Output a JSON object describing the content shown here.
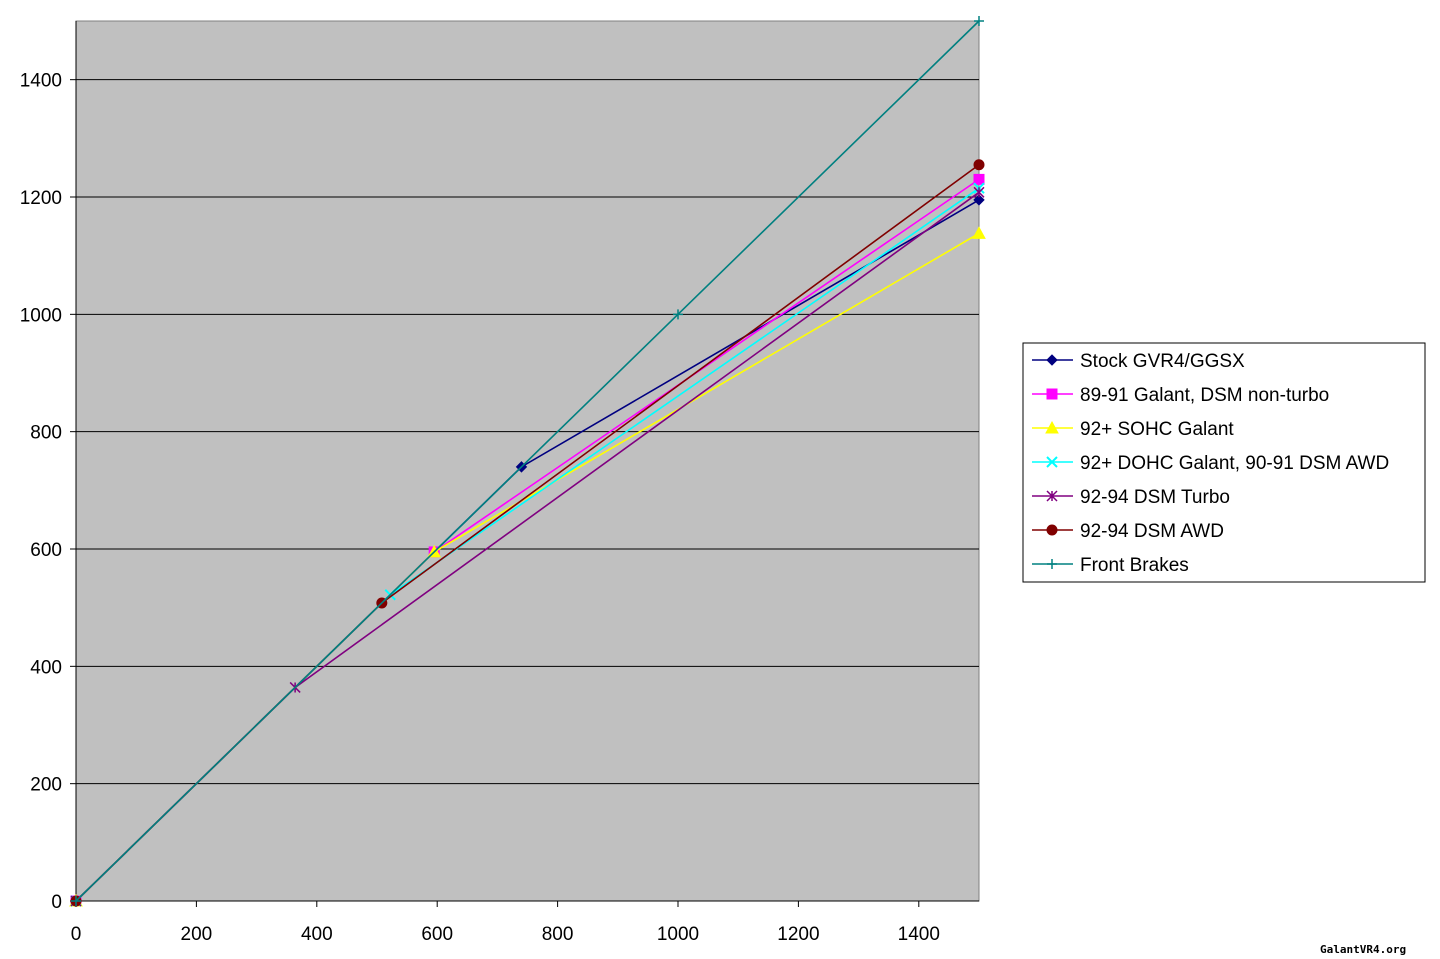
{
  "chart_data": {
    "type": "line",
    "xlim": [
      0,
      1500
    ],
    "ylim": [
      0,
      1500
    ],
    "x_ticks": [
      0,
      200,
      400,
      600,
      800,
      1000,
      1200,
      1400
    ],
    "y_ticks": [
      0,
      200,
      400,
      600,
      800,
      1000,
      1200,
      1400
    ],
    "grid": "horizontal",
    "legend_position": "right",
    "plot_background": "#c0c0c0",
    "series": [
      {
        "name": "Stock GVR4/GGSX",
        "color": "#000080",
        "marker": "diamond",
        "points": [
          [
            0,
            0
          ],
          [
            740,
            740
          ],
          [
            1500,
            1195
          ]
        ]
      },
      {
        "name": "89-91 Galant, DSM non-turbo",
        "color": "#ff00ff",
        "marker": "square",
        "points": [
          [
            0,
            0
          ],
          [
            595,
            595
          ],
          [
            1500,
            1230
          ]
        ]
      },
      {
        "name": "92+ SOHC Galant",
        "color": "#ffff00",
        "marker": "triangle",
        "points": [
          [
            0,
            0
          ],
          [
            595,
            595
          ],
          [
            1500,
            1138
          ]
        ]
      },
      {
        "name": "92+ DOHC Galant, 90-91 DSM AWD",
        "color": "#00ffff",
        "marker": "x",
        "points": [
          [
            0,
            0
          ],
          [
            522,
            522
          ],
          [
            1500,
            1215
          ]
        ]
      },
      {
        "name": "92-94 DSM Turbo",
        "color": "#800080",
        "marker": "star",
        "points": [
          [
            0,
            0
          ],
          [
            364,
            364
          ],
          [
            1500,
            1208
          ]
        ]
      },
      {
        "name": "92-94 DSM AWD",
        "color": "#800000",
        "marker": "circle",
        "points": [
          [
            0,
            0
          ],
          [
            508,
            508
          ],
          [
            1500,
            1255
          ]
        ]
      },
      {
        "name": "Front Brakes",
        "color": "#008080",
        "marker": "plus",
        "points": [
          [
            0,
            0
          ],
          [
            1000,
            1000
          ],
          [
            1500,
            1500
          ]
        ]
      }
    ]
  },
  "credit": "GalantVR4.org"
}
